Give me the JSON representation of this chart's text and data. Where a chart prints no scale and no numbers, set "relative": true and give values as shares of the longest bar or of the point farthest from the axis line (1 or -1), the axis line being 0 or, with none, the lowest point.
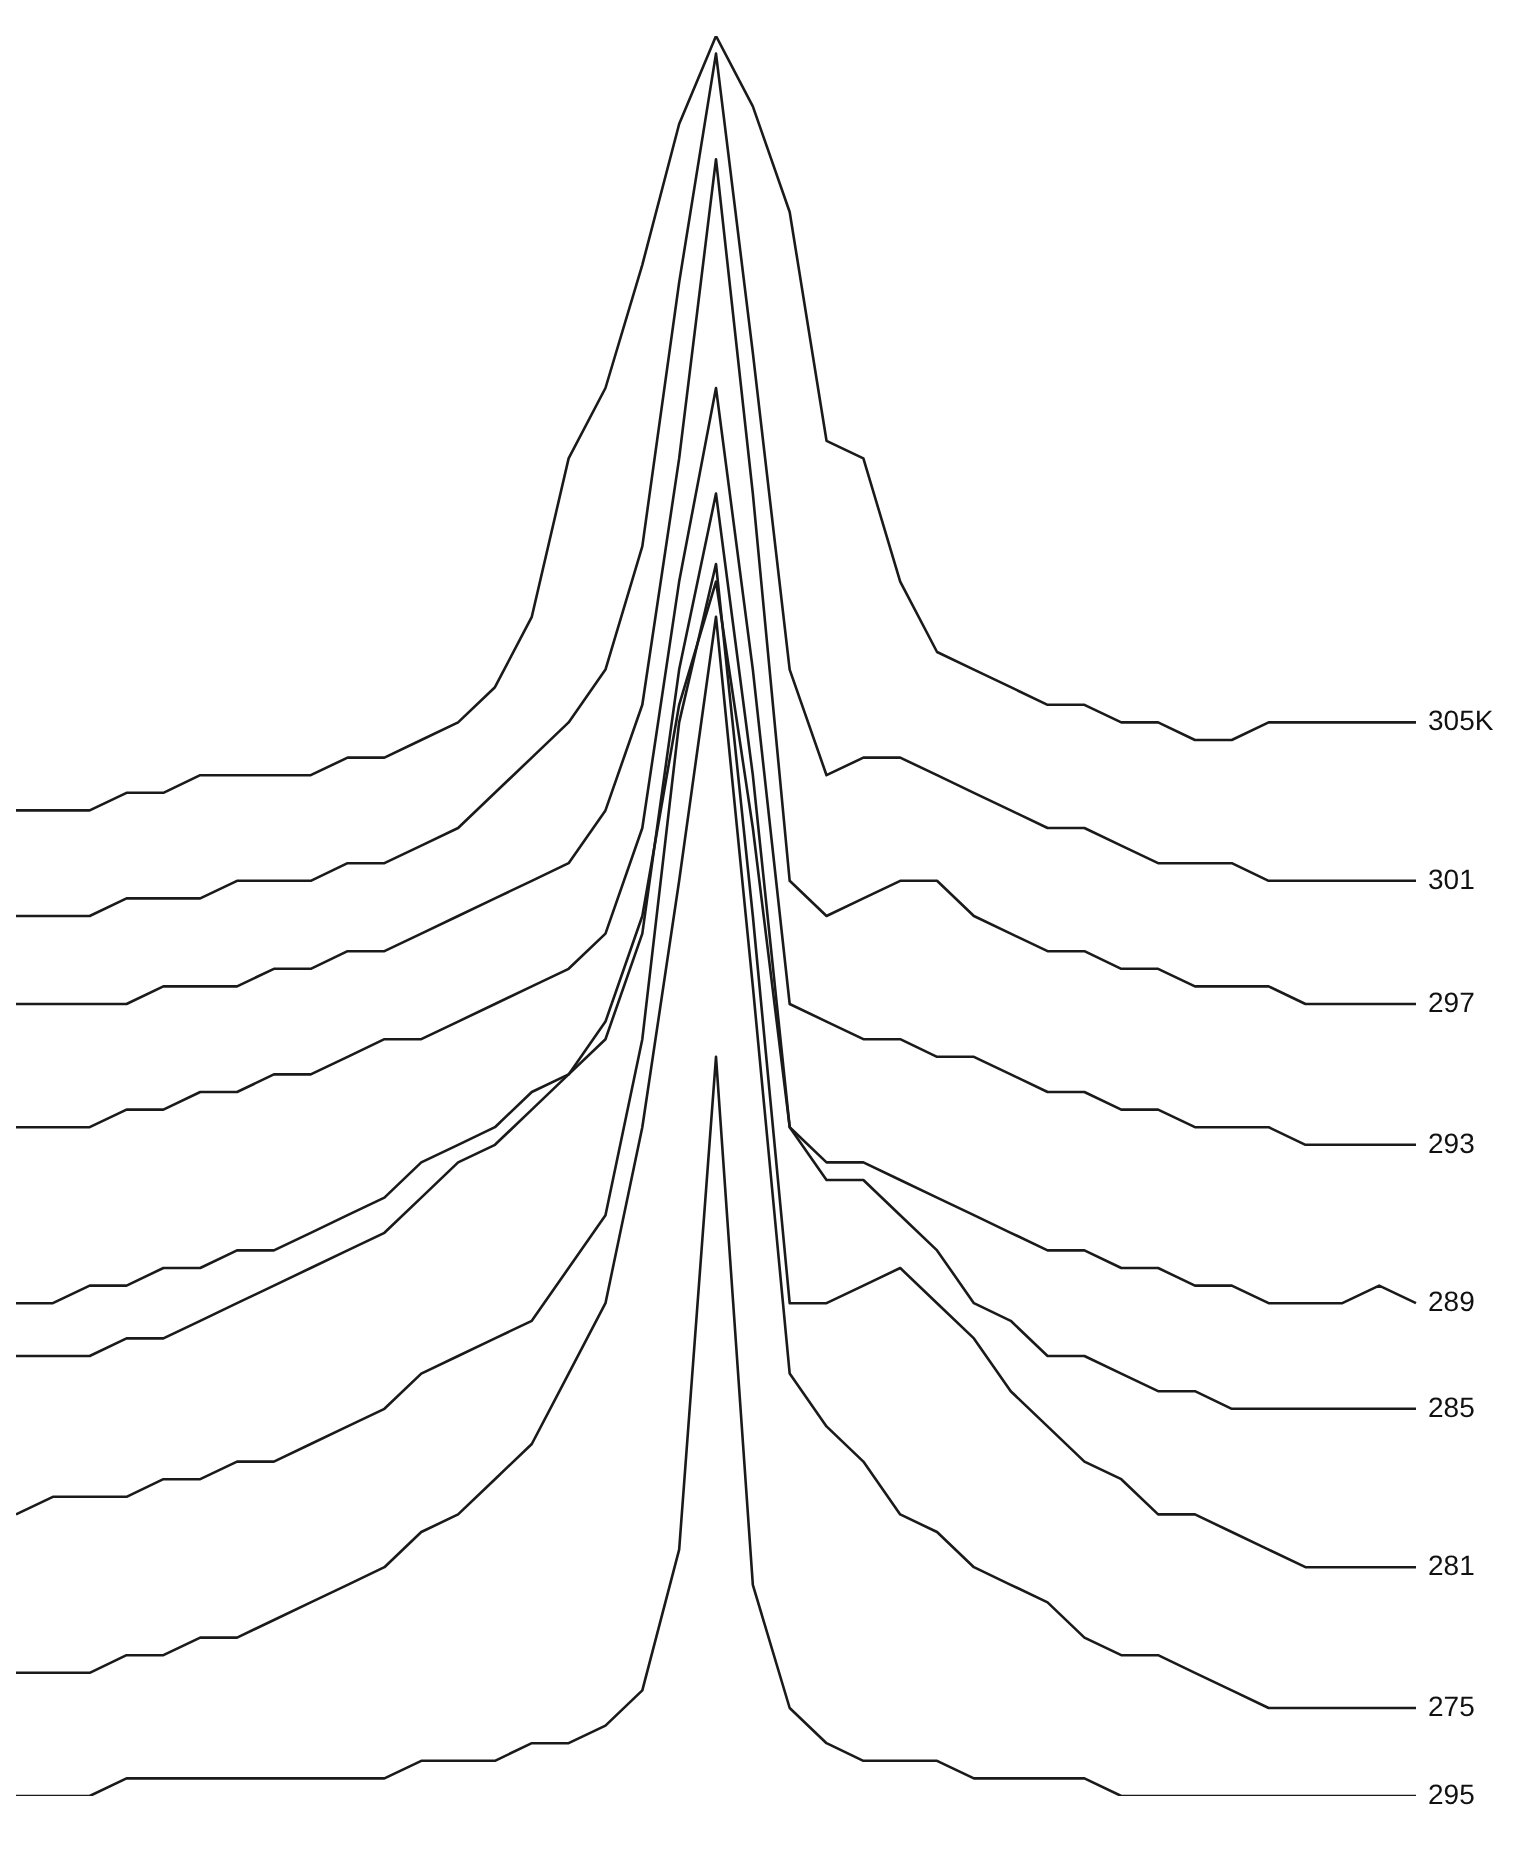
{
  "chart_data": {
    "type": "line",
    "relative": true,
    "categories": [
      null,
      null,
      null,
      null,
      null,
      null,
      null,
      null,
      null,
      null,
      null,
      null,
      null,
      null,
      null,
      null,
      null,
      null,
      null,
      null,
      null,
      null,
      null,
      null,
      null,
      null,
      null,
      null,
      null,
      null,
      null,
      null,
      null,
      null,
      null,
      null,
      null,
      null,
      null
    ],
    "series": [
      {
        "name": "305K",
        "color": "#1a1a1a",
        "values": [
          0.56,
          0.56,
          0.56,
          0.57,
          0.57,
          0.58,
          0.58,
          0.58,
          0.58,
          0.59,
          0.59,
          0.6,
          0.61,
          0.63,
          0.67,
          0.76,
          0.8,
          0.87,
          0.95,
          1.0,
          0.96,
          0.9,
          0.77,
          0.76,
          0.69,
          0.65,
          0.64,
          0.63,
          0.62,
          0.62,
          0.61,
          0.61,
          0.6,
          0.6,
          0.61,
          0.61,
          0.61,
          0.61,
          0.61
        ]
      },
      {
        "name": "301",
        "color": "#1a1a1a",
        "values": [
          0.5,
          0.5,
          0.5,
          0.51,
          0.51,
          0.51,
          0.52,
          0.52,
          0.52,
          0.53,
          0.53,
          0.54,
          0.55,
          0.57,
          0.59,
          0.61,
          0.64,
          0.71,
          0.86,
          0.99,
          0.82,
          0.64,
          0.58,
          0.59,
          0.59,
          0.58,
          0.57,
          0.56,
          0.55,
          0.55,
          0.54,
          0.53,
          0.53,
          0.53,
          0.52,
          0.52,
          0.52,
          0.52,
          0.52
        ]
      },
      {
        "name": "297",
        "color": "#1a1a1a",
        "values": [
          0.45,
          0.45,
          0.45,
          0.45,
          0.46,
          0.46,
          0.46,
          0.47,
          0.47,
          0.48,
          0.48,
          0.49,
          0.5,
          0.51,
          0.52,
          0.53,
          0.56,
          0.62,
          0.76,
          0.93,
          0.74,
          0.52,
          0.5,
          0.51,
          0.52,
          0.52,
          0.5,
          0.49,
          0.48,
          0.48,
          0.47,
          0.47,
          0.46,
          0.46,
          0.46,
          0.45,
          0.45,
          0.45,
          0.45
        ]
      },
      {
        "name": "293",
        "color": "#1a1a1a",
        "values": [
          0.38,
          0.38,
          0.38,
          0.39,
          0.39,
          0.4,
          0.4,
          0.41,
          0.41,
          0.42,
          0.43,
          0.43,
          0.44,
          0.45,
          0.46,
          0.47,
          0.49,
          0.55,
          0.69,
          0.8,
          0.64,
          0.45,
          0.44,
          0.43,
          0.43,
          0.42,
          0.42,
          0.41,
          0.4,
          0.4,
          0.39,
          0.39,
          0.38,
          0.38,
          0.38,
          0.37,
          0.37,
          0.37,
          0.37
        ]
      },
      {
        "name": "289",
        "color": "#1a1a1a",
        "values": [
          0.28,
          0.28,
          0.29,
          0.29,
          0.3,
          0.3,
          0.31,
          0.31,
          0.32,
          0.33,
          0.34,
          0.36,
          0.37,
          0.38,
          0.4,
          0.41,
          0.43,
          0.49,
          0.64,
          0.74,
          0.58,
          0.38,
          0.36,
          0.36,
          0.35,
          0.34,
          0.33,
          0.32,
          0.31,
          0.31,
          0.3,
          0.3,
          0.29,
          0.29,
          0.28,
          0.28,
          0.28,
          0.29,
          0.28
        ]
      },
      {
        "name": "285",
        "color": "#1a1a1a",
        "values": [
          0.25,
          0.25,
          0.25,
          0.26,
          0.26,
          0.27,
          0.28,
          0.29,
          0.3,
          0.31,
          0.32,
          0.34,
          0.36,
          0.37,
          0.39,
          0.41,
          0.44,
          0.5,
          0.62,
          0.69,
          0.55,
          0.38,
          0.35,
          0.35,
          0.33,
          0.31,
          0.28,
          0.27,
          0.25,
          0.25,
          0.24,
          0.23,
          0.23,
          0.22,
          0.22,
          0.22,
          0.22,
          0.22,
          0.22
        ]
      },
      {
        "name": "281",
        "color": "#1a1a1a",
        "values": [
          0.16,
          0.17,
          0.17,
          0.17,
          0.18,
          0.18,
          0.19,
          0.19,
          0.2,
          0.21,
          0.22,
          0.24,
          0.25,
          0.26,
          0.27,
          0.3,
          0.33,
          0.43,
          0.61,
          0.7,
          0.5,
          0.28,
          0.28,
          0.29,
          0.3,
          0.28,
          0.26,
          0.23,
          0.21,
          0.19,
          0.18,
          0.16,
          0.16,
          0.15,
          0.14,
          0.13,
          0.13,
          0.13,
          0.13
        ]
      },
      {
        "name": "275",
        "color": "#1a1a1a",
        "values": [
          0.07,
          0.07,
          0.07,
          0.08,
          0.08,
          0.09,
          0.09,
          0.1,
          0.11,
          0.12,
          0.13,
          0.15,
          0.16,
          0.18,
          0.2,
          0.24,
          0.28,
          0.38,
          0.52,
          0.67,
          0.46,
          0.24,
          0.21,
          0.19,
          0.16,
          0.15,
          0.13,
          0.12,
          0.11,
          0.09,
          0.08,
          0.08,
          0.07,
          0.06,
          0.05,
          0.05,
          0.05,
          0.05,
          0.05
        ]
      },
      {
        "name": "295",
        "color": "#1a1a1a",
        "values": [
          0.0,
          0.0,
          0.0,
          0.01,
          0.01,
          0.01,
          0.01,
          0.01,
          0.01,
          0.01,
          0.01,
          0.02,
          0.02,
          0.02,
          0.03,
          0.03,
          0.04,
          0.06,
          0.14,
          0.42,
          0.12,
          0.05,
          0.03,
          0.02,
          0.02,
          0.02,
          0.01,
          0.01,
          0.01,
          0.01,
          0.0,
          0.0,
          0.0,
          0.0,
          0.0,
          0.0,
          0.0,
          0.0,
          0.0
        ]
      }
    ]
  }
}
